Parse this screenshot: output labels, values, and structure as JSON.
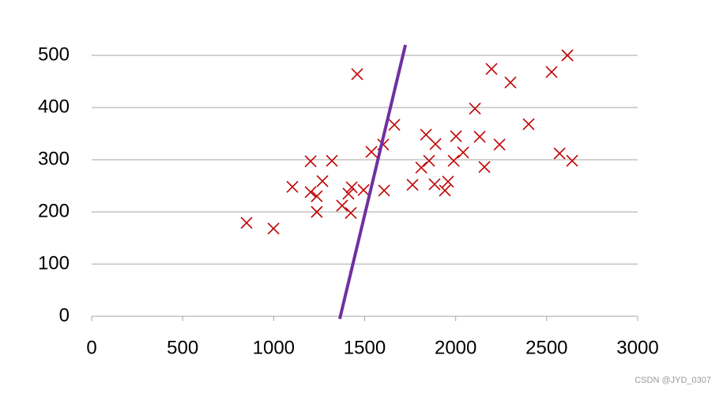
{
  "chart_data": {
    "type": "scatter",
    "xlim": [
      0,
      3000
    ],
    "xticks": [
      0,
      500,
      1000,
      1500,
      2000,
      2500,
      3000
    ],
    "ylim": [
      0,
      500
    ],
    "yticks": [
      0,
      100,
      200,
      300,
      400,
      500
    ],
    "grid": true,
    "series": [
      {
        "type": "scatter",
        "marker": "x",
        "color": "#c00000",
        "x": [
          851,
          999,
          1103,
          1203,
          1203,
          1237,
          1237,
          1268,
          1320,
          1376,
          1411,
          1429,
          1424,
          1459,
          1494,
          1537,
          1602,
          1607,
          1663,
          1763,
          1811,
          1837,
          1854,
          1884,
          1889,
          1941,
          1958,
          1989,
          2002,
          2041,
          2106,
          2132,
          2158,
          2197,
          2241,
          2301,
          2401,
          2527,
          2571,
          2614,
          2640
        ],
        "values": [
          179,
          168,
          248,
          297,
          238,
          230,
          200,
          259,
          298,
          212,
          235,
          247,
          198,
          464,
          242,
          315,
          329,
          241,
          367,
          252,
          285,
          348,
          298,
          253,
          330,
          241,
          258,
          298,
          345,
          314,
          398,
          344,
          286,
          474,
          329,
          448,
          368,
          468,
          312,
          500,
          298
        ]
      },
      {
        "type": "line",
        "color": "#7030a0",
        "x": [
          1363,
          1724
        ],
        "values": [
          -5,
          520
        ]
      }
    ],
    "watermark": "CSDN @JYD_0307"
  }
}
